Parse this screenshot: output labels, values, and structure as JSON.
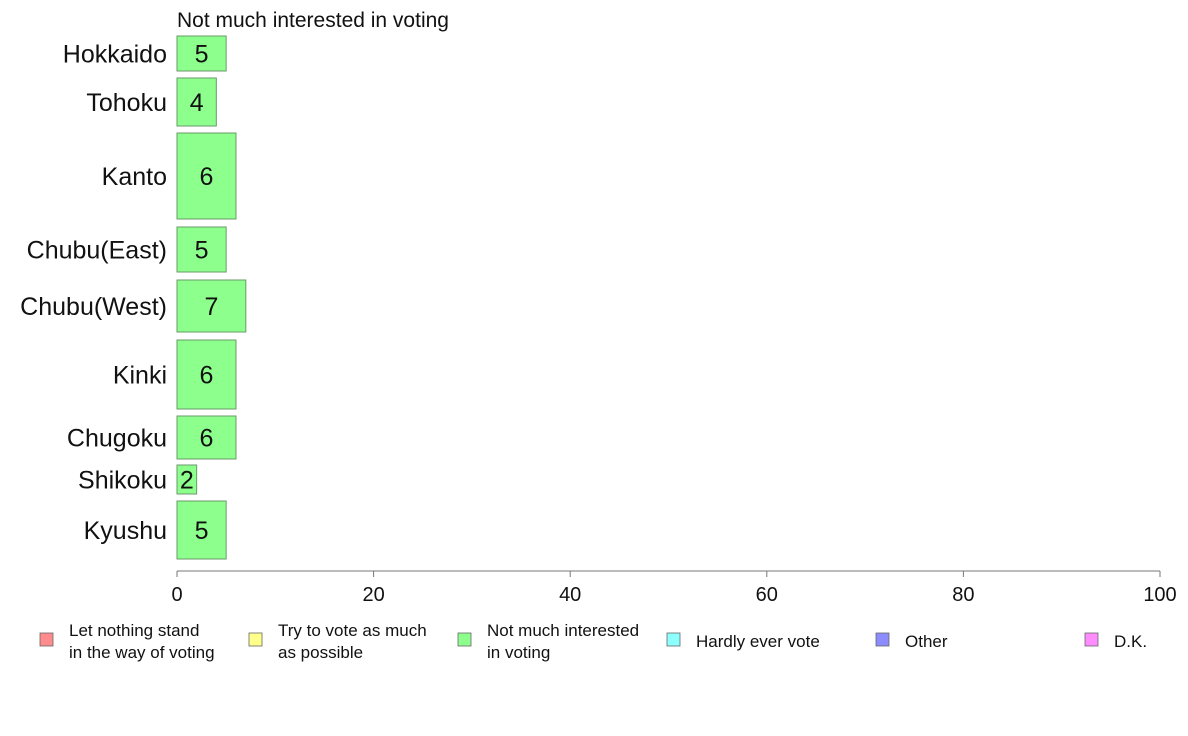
{
  "chart_data": {
    "type": "bar",
    "orientation": "horizontal",
    "title": "Not much interested in voting",
    "categories": [
      "Hokkaido",
      "Tohoku",
      "Kanto",
      "Chubu(East)",
      "Chubu(West)",
      "Kinki",
      "Chugoku",
      "Shikoku",
      "Kyushu"
    ],
    "values": [
      5,
      4,
      6,
      5,
      7,
      6,
      6,
      2,
      5
    ],
    "value_labels": [
      "5",
      "4",
      "6",
      "5",
      "7",
      "6",
      "6",
      "2",
      "5"
    ],
    "series_color": "#8cff8c",
    "xlim": [
      0,
      100
    ],
    "xticks": [
      0,
      20,
      40,
      60,
      80,
      100
    ],
    "grid": false,
    "legend_position": "bottom",
    "legend": [
      {
        "lines": [
          "Let nothing stand",
          "in the way of voting"
        ],
        "color": "#ff8c8c"
      },
      {
        "lines": [
          "Try to vote as much",
          "as possible"
        ],
        "color": "#ffff8c"
      },
      {
        "lines": [
          "Not much interested",
          "in voting"
        ],
        "color": "#8cff8c"
      },
      {
        "lines": [
          "Hardly ever vote"
        ],
        "color": "#8cffff"
      },
      {
        "lines": [
          "Other"
        ],
        "color": "#8c8cff"
      },
      {
        "lines": [
          "D.K."
        ],
        "color": "#ff8cff"
      }
    ]
  }
}
